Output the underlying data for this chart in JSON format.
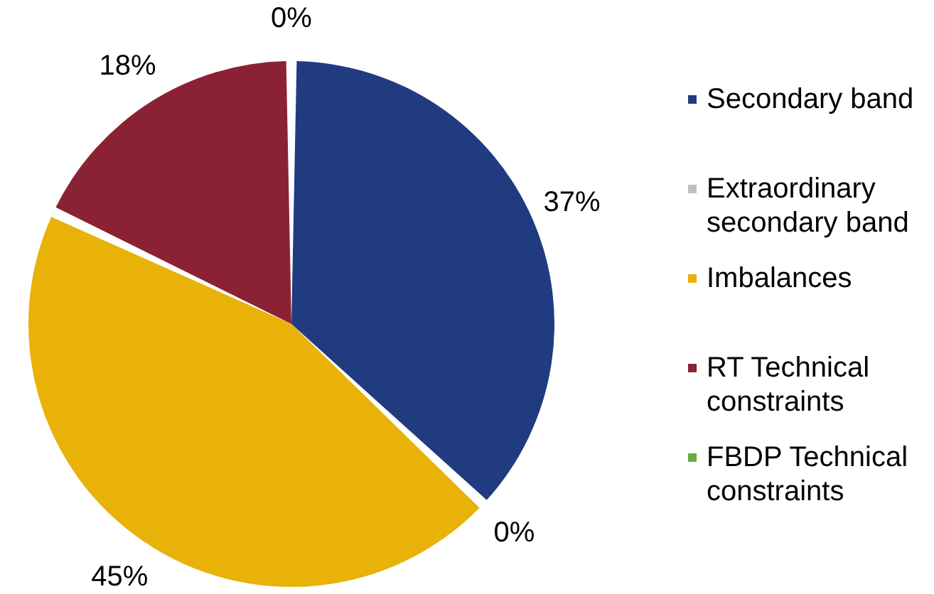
{
  "chart_data": {
    "type": "pie",
    "categories": [
      "Secondary band",
      "Extraordinary secondary band",
      "Imbalances",
      "RT Technical constraints",
      "FBDP Technical constraints"
    ],
    "values": [
      37,
      0,
      45,
      18,
      0
    ],
    "value_labels": [
      "37%",
      "0%",
      "45%",
      "18%",
      "0%"
    ],
    "colors": [
      "#213b80",
      "#bfbfbf",
      "#e8b209",
      "#8b2234",
      "#6aaa3a"
    ],
    "legend": "right"
  }
}
